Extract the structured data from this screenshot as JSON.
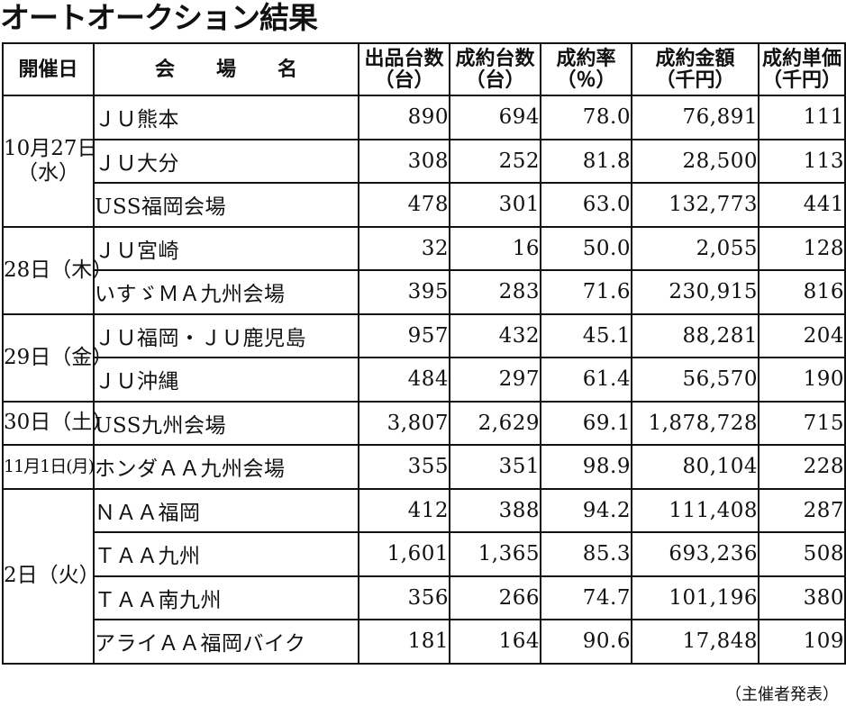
{
  "title": "オートオークション結果",
  "headers": {
    "date": "開催日",
    "venue": "会場名",
    "listed": [
      "出品台数",
      "（台）"
    ],
    "sold": [
      "成約台数",
      "（台）"
    ],
    "rate": [
      "成約率",
      "（％）"
    ],
    "amount": [
      "成約金額",
      "（千円）"
    ],
    "unit_price": [
      "成約単価",
      "（千円）"
    ]
  },
  "groups": [
    {
      "date": [
        "10月27日",
        "（水）"
      ],
      "rows": [
        {
          "venue": "ＪＵ熊本",
          "listed": "890",
          "sold": "694",
          "rate": "78.0",
          "amount": "76,891",
          "unit_price": "111"
        },
        {
          "venue": "ＪＵ大分",
          "listed": "308",
          "sold": "252",
          "rate": "81.8",
          "amount": "28,500",
          "unit_price": "113"
        },
        {
          "venue": "USS福岡会場",
          "listed": "478",
          "sold": "301",
          "rate": "63.0",
          "amount": "132,773",
          "unit_price": "441"
        }
      ]
    },
    {
      "date": [
        "28日（木）"
      ],
      "rows": [
        {
          "venue": "ＪＵ宮崎",
          "listed": "32",
          "sold": "16",
          "rate": "50.0",
          "amount": "2,055",
          "unit_price": "128"
        },
        {
          "venue": "いすゞＭＡ九州会場",
          "listed": "395",
          "sold": "283",
          "rate": "71.6",
          "amount": "230,915",
          "unit_price": "816"
        }
      ]
    },
    {
      "date": [
        "29日（金）"
      ],
      "rows": [
        {
          "venue": "ＪＵ福岡・ＪＵ鹿児島",
          "listed": "957",
          "sold": "432",
          "rate": "45.1",
          "amount": "88,281",
          "unit_price": "204"
        },
        {
          "venue": "ＪＵ沖縄",
          "listed": "484",
          "sold": "297",
          "rate": "61.4",
          "amount": "56,570",
          "unit_price": "190"
        }
      ]
    },
    {
      "date": [
        "30日（土）"
      ],
      "rows": [
        {
          "venue": "USS九州会場",
          "listed": "3,807",
          "sold": "2,629",
          "rate": "69.1",
          "amount": "1,878,728",
          "unit_price": "715"
        }
      ]
    },
    {
      "date": [
        "11月1日(月)"
      ],
      "rows": [
        {
          "venue": "ホンダＡＡ九州会場",
          "listed": "355",
          "sold": "351",
          "rate": "98.9",
          "amount": "80,104",
          "unit_price": "228"
        }
      ]
    },
    {
      "date": [
        "2日（火）"
      ],
      "rows": [
        {
          "venue": "ＮＡＡ福岡",
          "listed": "412",
          "sold": "388",
          "rate": "94.2",
          "amount": "111,408",
          "unit_price": "287"
        },
        {
          "venue": "ＴＡＡ九州",
          "listed": "1,601",
          "sold": "1,365",
          "rate": "85.3",
          "amount": "693,236",
          "unit_price": "508"
        },
        {
          "venue": "ＴＡＡ南九州",
          "listed": "356",
          "sold": "266",
          "rate": "74.7",
          "amount": "101,196",
          "unit_price": "380"
        },
        {
          "venue": "アライＡＡ福岡バイク",
          "listed": "181",
          "sold": "164",
          "rate": "90.6",
          "amount": "17,848",
          "unit_price": "109"
        }
      ]
    }
  ],
  "footer": "（主催者発表）"
}
